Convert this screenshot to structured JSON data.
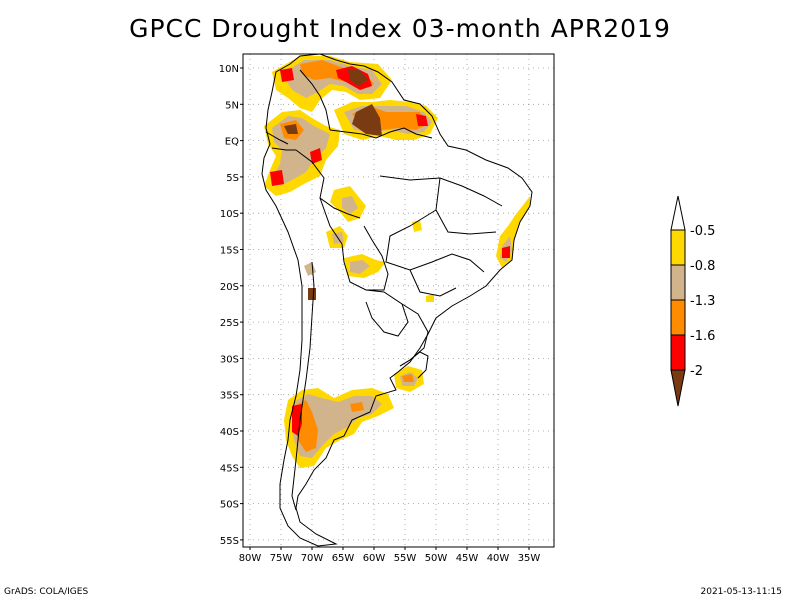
{
  "title": "GPCC Drought Index 03-month APR2019",
  "footer": {
    "left": "GrADS: COLA/IGES",
    "right": "2021-05-13-11:15"
  },
  "map": {
    "lat_labels": [
      "10N",
      "5N",
      "EQ",
      "5S",
      "10S",
      "15S",
      "20S",
      "25S",
      "30S",
      "35S",
      "40S",
      "45S",
      "50S",
      "55S"
    ],
    "lon_labels": [
      "80W",
      "75W",
      "70W",
      "65W",
      "60W",
      "55W",
      "50W",
      "45W",
      "40W",
      "35W"
    ],
    "colors": {
      "c_05": "#ffd800",
      "c_08": "#d2b48c",
      "c_13": "#ff8c00",
      "c_16": "#ff0000",
      "c_20": "#7a3b12"
    }
  },
  "legend": {
    "labels": [
      "-0.5",
      "-0.8",
      "-1.3",
      "-1.6",
      "-2"
    ]
  }
}
